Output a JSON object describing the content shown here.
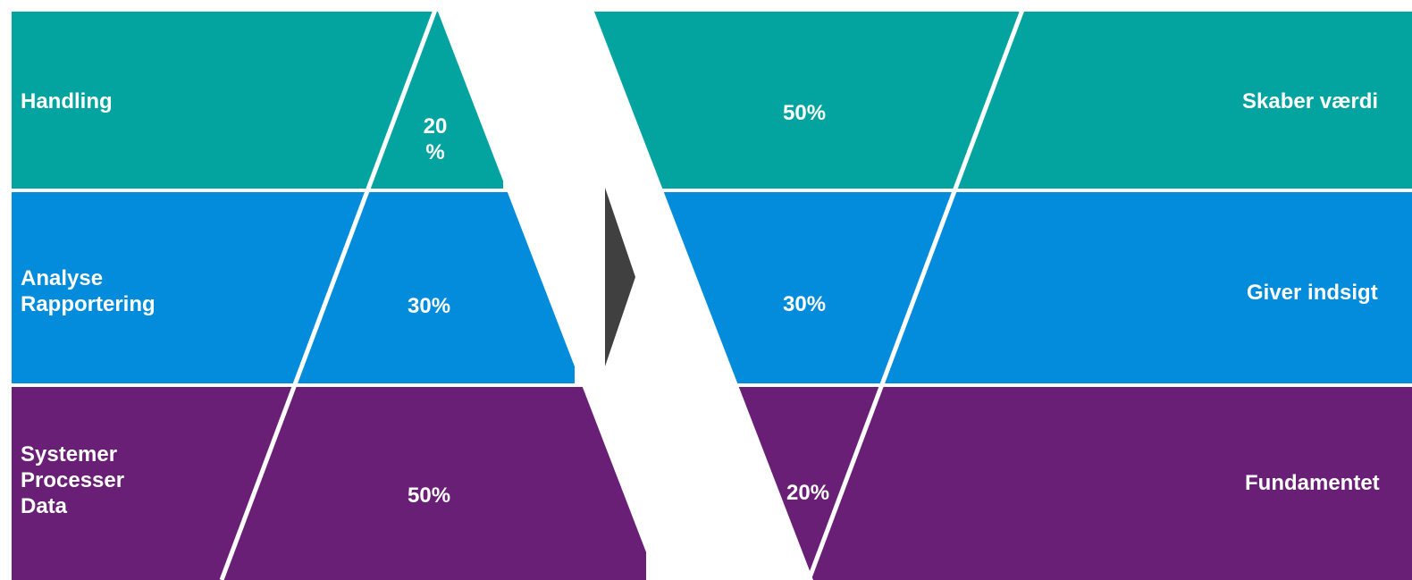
{
  "colors": {
    "teal": "#03A4A0",
    "blue": "#028CDB",
    "purple": "#6A1F76",
    "arrow": "#404040",
    "divider": "#ffffff"
  },
  "left": {
    "rows": [
      {
        "key": "top",
        "lines": [
          "Handling"
        ],
        "percent_lines": [
          "20",
          "%"
        ]
      },
      {
        "key": "middle",
        "lines": [
          "Analyse",
          "Rapportering"
        ],
        "percent_lines": [
          "30%"
        ]
      },
      {
        "key": "bottom",
        "lines": [
          "Systemer",
          "Processer",
          "Data"
        ],
        "percent_lines": [
          "50%"
        ]
      }
    ]
  },
  "right": {
    "rows": [
      {
        "key": "top",
        "percent": "50%",
        "description": "Skaber værdi"
      },
      {
        "key": "middle",
        "percent": "30%",
        "description": "Giver indsigt"
      },
      {
        "key": "bottom",
        "percent": "20%",
        "description": "Fundamentet"
      }
    ]
  },
  "arrow_icon": "chevron-right-arrow"
}
